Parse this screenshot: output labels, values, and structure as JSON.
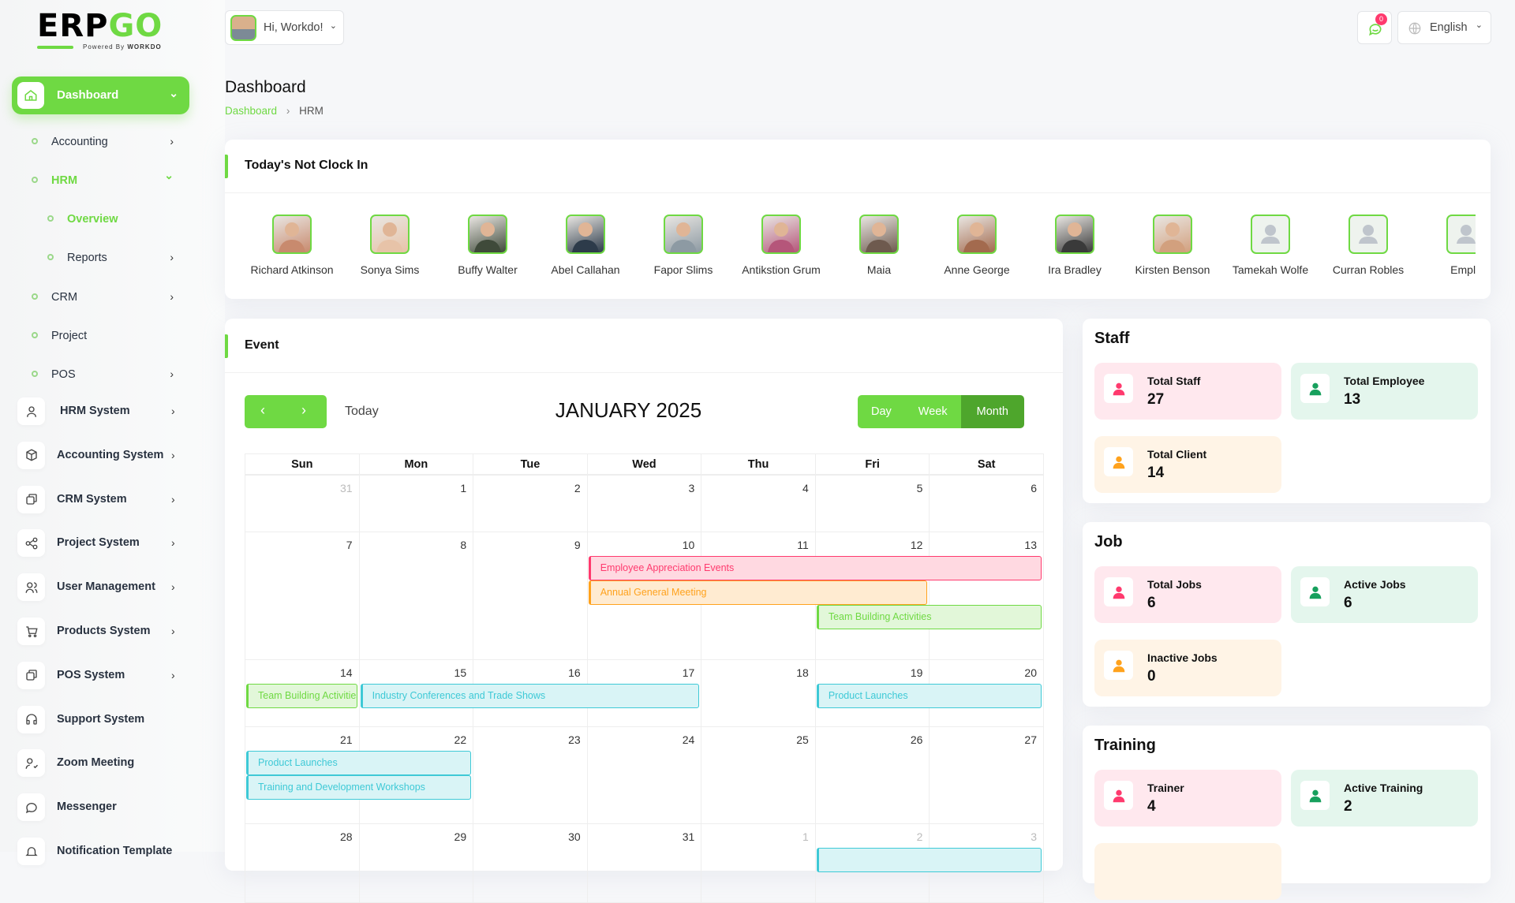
{
  "brand": {
    "logo_text": "ERPGO",
    "powered": "Powered By WORKDO"
  },
  "header": {
    "greeting": "Hi, Workdo!",
    "notification_count": "0",
    "language": "English"
  },
  "page": {
    "title": "Dashboard",
    "breadcrumb": [
      "Dashboard",
      "HRM"
    ]
  },
  "sidebar": {
    "dashboard": "Dashboard",
    "sub_items": [
      {
        "label": "Accounting",
        "arrow": true
      },
      {
        "label": "HRM",
        "arrow": "down",
        "active": true
      },
      {
        "label": "Overview",
        "level": 2,
        "active": true
      },
      {
        "label": "Reports",
        "level": 2,
        "arrow": true
      },
      {
        "label": "CRM",
        "arrow": true
      },
      {
        "label": "Project"
      },
      {
        "label": "POS",
        "arrow": true
      }
    ],
    "systems": [
      {
        "label": "HRM System",
        "icon": "user-icon",
        "arrow": true
      },
      {
        "label": "Accounting System",
        "icon": "box-icon",
        "arrow": true
      },
      {
        "label": "CRM System",
        "icon": "layers-icon",
        "arrow": true
      },
      {
        "label": "Project System",
        "icon": "share-icon",
        "arrow": true
      },
      {
        "label": "User Management",
        "icon": "users-icon",
        "arrow": true
      },
      {
        "label": "Products System",
        "icon": "cart-icon",
        "arrow": true
      },
      {
        "label": "POS System",
        "icon": "layers-icon",
        "arrow": true
      },
      {
        "label": "Support System",
        "icon": "headphones-icon"
      },
      {
        "label": "Zoom Meeting",
        "icon": "user-check-icon"
      },
      {
        "label": "Messenger",
        "icon": "message-icon"
      },
      {
        "label": "Notification Template",
        "icon": "bell-icon"
      }
    ]
  },
  "not_clock_in": {
    "title": "Today's Not Clock In",
    "employees": [
      {
        "name": "Richard Atkinson",
        "photo": true,
        "tone": "#c88a6e"
      },
      {
        "name": "Sonya Sims",
        "photo": true,
        "tone": "#e7c3a8"
      },
      {
        "name": "Buffy Walter",
        "photo": true,
        "tone": "#3f4a3a"
      },
      {
        "name": "Abel Callahan",
        "photo": true,
        "tone": "#2d3b4a"
      },
      {
        "name": "Fapor Slims",
        "photo": true,
        "tone": "#8d9aa3"
      },
      {
        "name": "Antikstion Grum",
        "photo": true,
        "tone": "#b5567a"
      },
      {
        "name": "Maia",
        "photo": true,
        "tone": "#6e5a4e"
      },
      {
        "name": "Anne George",
        "photo": true,
        "tone": "#a36a4e"
      },
      {
        "name": "Ira Bradley",
        "photo": true,
        "tone": "#3a3a3a"
      },
      {
        "name": "Kirsten Benson",
        "photo": true,
        "tone": "#d2a07e"
      },
      {
        "name": "Tamekah Wolfe",
        "photo": false
      },
      {
        "name": "Curran Robles",
        "photo": false
      },
      {
        "name": "Emplo",
        "photo": false
      }
    ]
  },
  "event": {
    "title": "Event",
    "today": "Today",
    "month_title": "JANUARY 2025",
    "views": [
      "Day",
      "Week",
      "Month"
    ],
    "active_view": "Month",
    "weekdays": [
      "Sun",
      "Mon",
      "Tue",
      "Wed",
      "Thu",
      "Fri",
      "Sat"
    ],
    "weeks": [
      [
        {
          "d": "31",
          "other": true
        },
        {
          "d": "1"
        },
        {
          "d": "2"
        },
        {
          "d": "3"
        },
        {
          "d": "4"
        },
        {
          "d": "5"
        },
        {
          "d": "6"
        }
      ],
      [
        {
          "d": "7"
        },
        {
          "d": "8"
        },
        {
          "d": "9"
        },
        {
          "d": "10"
        },
        {
          "d": "11"
        },
        {
          "d": "12"
        },
        {
          "d": "13"
        }
      ],
      [
        {
          "d": "14"
        },
        {
          "d": "15"
        },
        {
          "d": "16"
        },
        {
          "d": "17"
        },
        {
          "d": "18"
        },
        {
          "d": "19"
        },
        {
          "d": "20"
        }
      ],
      [
        {
          "d": "21"
        },
        {
          "d": "22"
        },
        {
          "d": "23"
        },
        {
          "d": "24"
        },
        {
          "d": "25"
        },
        {
          "d": "26"
        },
        {
          "d": "27"
        }
      ],
      [
        {
          "d": "28"
        },
        {
          "d": "29"
        },
        {
          "d": "30"
        },
        {
          "d": "31"
        },
        {
          "d": "1",
          "other": true
        },
        {
          "d": "2",
          "other": true
        },
        {
          "d": "3",
          "other": true
        }
      ]
    ],
    "events": [
      {
        "title": "Employee Appreciation Events",
        "week": 1,
        "from": "Wed",
        "to": "Sat",
        "color": "pink"
      },
      {
        "title": "Annual General Meeting",
        "week": 1,
        "from": "Wed",
        "to": "Fri",
        "color": "orange"
      },
      {
        "title": "Team Building Activities",
        "week": 1,
        "from": "Fri",
        "to": "Sat",
        "color": "green"
      },
      {
        "title": "Team Building Activities",
        "week": 2,
        "from": "Sun",
        "to": "Sun",
        "color": "green"
      },
      {
        "title": "Industry Conferences and Trade Shows",
        "week": 2,
        "from": "Mon",
        "to": "Wed",
        "color": "cyan"
      },
      {
        "title": "Product Launches",
        "week": 2,
        "from": "Fri",
        "to": "Sat",
        "color": "cyan"
      },
      {
        "title": "Product Launches",
        "week": 3,
        "from": "Sun",
        "to": "Mon",
        "color": "cyan"
      },
      {
        "title": "Training and Development Workshops",
        "week": 3,
        "from": "Sun",
        "to": "Mon",
        "color": "cyan"
      },
      {
        "title": "",
        "week": 4,
        "from": "Fri",
        "to": "Sat",
        "color": "cyan"
      }
    ],
    "colors": {
      "pink": [
        "#ff3a6e",
        "#ffd9e1"
      ],
      "orange": [
        "#ffa21d",
        "#ffebd1"
      ],
      "green": [
        "#6fd943",
        "#e2f7d9"
      ],
      "cyan": [
        "#3ec9d6",
        "#d9f4f6"
      ]
    }
  },
  "stats": [
    {
      "title": "Staff",
      "tiles": [
        {
          "label": "Total Staff",
          "value": "27",
          "tone": "pink",
          "icon": "users-icon"
        },
        {
          "label": "Total Employee",
          "value": "13",
          "tone": "green",
          "icon": "employee-icon"
        },
        {
          "label": "Total Client",
          "value": "14",
          "tone": "peach",
          "icon": "client-icon"
        }
      ]
    },
    {
      "title": "Job",
      "tiles": [
        {
          "label": "Total Jobs",
          "value": "6",
          "tone": "pink",
          "icon": "briefcase-icon"
        },
        {
          "label": "Active Jobs",
          "value": "6",
          "tone": "green",
          "icon": "check-icon"
        },
        {
          "label": "Inactive Jobs",
          "value": "0",
          "tone": "peach",
          "icon": "x-icon"
        }
      ]
    },
    {
      "title": "Training",
      "tiles": [
        {
          "label": "Trainer",
          "value": "4",
          "tone": "pink",
          "icon": "trainer-icon"
        },
        {
          "label": "Active Training",
          "value": "2",
          "tone": "green",
          "icon": "user-check-icon"
        },
        {
          "label": "",
          "value": "",
          "tone": "peach",
          "icon": ""
        }
      ]
    }
  ],
  "accent": "#6fd943"
}
